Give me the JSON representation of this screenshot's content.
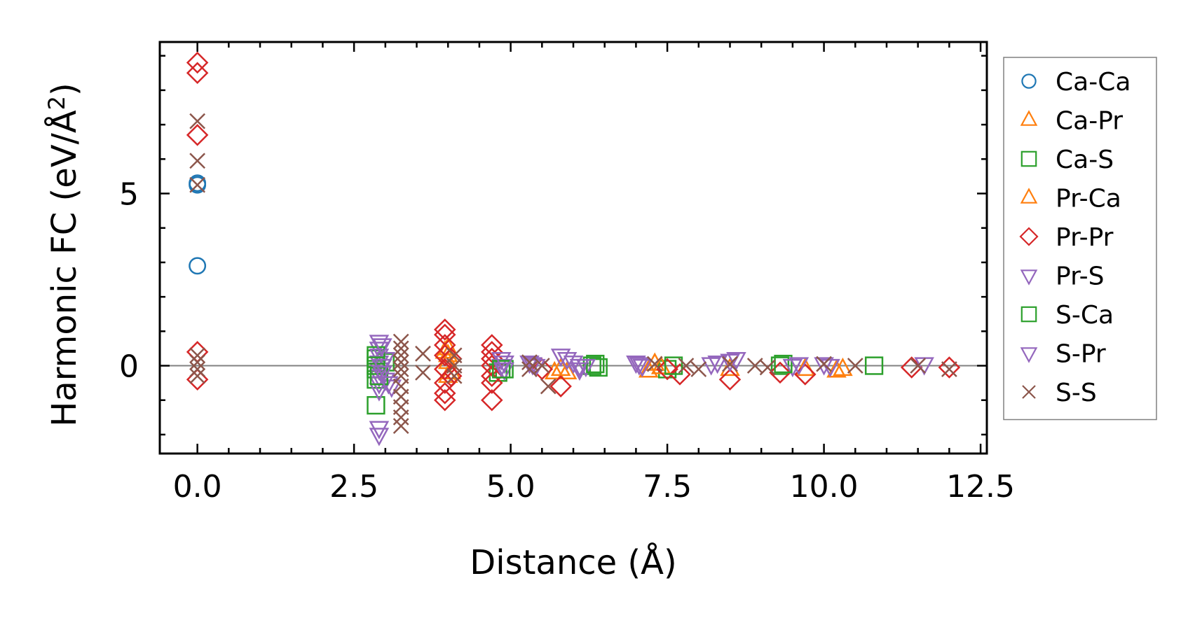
{
  "chart_data": {
    "type": "scatter",
    "title": "",
    "xlabel": "Distance (Å)",
    "ylabel": "Harmonic FC (eV/Å",
    "ylabel_superscript": "2",
    "ylabel_close": ")",
    "xlim": [
      -0.6,
      12.6
    ],
    "ylim": [
      -2.55,
      9.4
    ],
    "xticks": [
      0.0,
      2.5,
      5.0,
      7.5,
      10.0,
      12.5
    ],
    "xtick_labels": [
      "0.0",
      "2.5",
      "5.0",
      "7.5",
      "10.0",
      "12.5"
    ],
    "yticks": [
      0,
      5
    ],
    "ytick_labels": [
      "0",
      "5"
    ],
    "zero_line": true,
    "legend_position": "right",
    "series": [
      {
        "name": "Ca-Ca",
        "marker": "circle",
        "color": "#1f77b4",
        "points": [
          [
            0,
            5.3
          ],
          [
            0,
            2.9
          ],
          [
            0,
            5.25
          ]
        ]
      },
      {
        "name": "Ca-Pr",
        "marker": "triangle-up",
        "color": "#ff7f0e",
        "points": [
          [
            4.0,
            0.5
          ],
          [
            4.0,
            0.3
          ],
          [
            4.0,
            0.1
          ],
          [
            4.05,
            -0.2
          ],
          [
            5.8,
            -0.1
          ],
          [
            5.9,
            -0.2
          ],
          [
            7.2,
            -0.15
          ],
          [
            7.3,
            0.05
          ],
          [
            8.5,
            -0.1
          ],
          [
            9.7,
            -0.1
          ],
          [
            10.3,
            -0.1
          ]
        ]
      },
      {
        "name": "Ca-S",
        "marker": "square",
        "color": "#2ca02c",
        "points": [
          [
            2.85,
            0.2
          ],
          [
            2.85,
            -0.1
          ],
          [
            2.85,
            -0.4
          ],
          [
            2.85,
            -1.15
          ],
          [
            3.0,
            0.1
          ],
          [
            4.8,
            -0.2
          ],
          [
            4.9,
            -0.1
          ],
          [
            6.3,
            0.0
          ],
          [
            6.4,
            -0.05
          ],
          [
            7.5,
            -0.1
          ],
          [
            9.3,
            0.0
          ],
          [
            10.8,
            0.0
          ]
        ]
      },
      {
        "name": "Pr-Ca",
        "marker": "triangle-up",
        "color": "#ff7f0e",
        "points": [
          [
            3.95,
            0.4
          ],
          [
            4.0,
            -0.3
          ],
          [
            5.7,
            -0.2
          ],
          [
            7.4,
            -0.05
          ],
          [
            10.2,
            -0.15
          ]
        ]
      },
      {
        "name": "Pr-Pr",
        "marker": "diamond",
        "color": "#d62728",
        "points": [
          [
            0,
            8.8
          ],
          [
            0,
            8.5
          ],
          [
            0,
            6.7
          ],
          [
            0,
            0.4
          ],
          [
            0,
            -0.4
          ],
          [
            3.95,
            1.05
          ],
          [
            3.95,
            0.9
          ],
          [
            3.95,
            0.6
          ],
          [
            3.95,
            0.3
          ],
          [
            3.95,
            -0.1
          ],
          [
            3.95,
            -0.5
          ],
          [
            3.95,
            -0.8
          ],
          [
            3.95,
            -1.0
          ],
          [
            4.05,
            0.2
          ],
          [
            4.05,
            -0.3
          ],
          [
            4.7,
            0.6
          ],
          [
            4.7,
            0.4
          ],
          [
            4.7,
            0.2
          ],
          [
            4.7,
            0.0
          ],
          [
            4.7,
            -0.3
          ],
          [
            4.7,
            -0.5
          ],
          [
            4.7,
            -1.0
          ],
          [
            5.5,
            -0.1
          ],
          [
            5.8,
            -0.6
          ],
          [
            7.5,
            -0.1
          ],
          [
            7.7,
            -0.25
          ],
          [
            8.5,
            -0.4
          ],
          [
            9.3,
            -0.2
          ],
          [
            9.7,
            -0.25
          ],
          [
            11.4,
            -0.05
          ],
          [
            12.0,
            -0.05
          ]
        ]
      },
      {
        "name": "Pr-S",
        "marker": "triangle-down",
        "color": "#9467bd",
        "points": [
          [
            2.9,
            0.7
          ],
          [
            2.9,
            0.5
          ],
          [
            2.9,
            0.3
          ],
          [
            2.9,
            0.1
          ],
          [
            2.9,
            -0.1
          ],
          [
            2.9,
            -0.3
          ],
          [
            2.9,
            -0.5
          ],
          [
            2.9,
            -0.7
          ],
          [
            2.9,
            -1.8
          ],
          [
            2.9,
            -2.0
          ],
          [
            3.0,
            0.2
          ],
          [
            3.0,
            -0.4
          ],
          [
            3.1,
            -0.6
          ],
          [
            4.85,
            0.2
          ],
          [
            4.85,
            0.0
          ],
          [
            4.9,
            -0.1
          ],
          [
            5.3,
            0.1
          ],
          [
            5.4,
            0.0
          ],
          [
            5.8,
            0.3
          ],
          [
            6.0,
            0.1
          ],
          [
            6.1,
            -0.1
          ],
          [
            6.2,
            0.0
          ],
          [
            7.0,
            0.1
          ],
          [
            7.1,
            0.0
          ],
          [
            8.2,
            0.05
          ],
          [
            8.6,
            0.2
          ],
          [
            9.5,
            0.0
          ],
          [
            10.0,
            0.05
          ],
          [
            11.6,
            0.05
          ]
        ]
      },
      {
        "name": "S-Ca",
        "marker": "square",
        "color": "#2ca02c",
        "points": [
          [
            2.85,
            0.3
          ],
          [
            2.85,
            0.0
          ],
          [
            2.9,
            -0.3
          ],
          [
            4.85,
            -0.1
          ],
          [
            6.35,
            0.05
          ],
          [
            7.6,
            0.0
          ],
          [
            9.35,
            0.05
          ]
        ]
      },
      {
        "name": "S-Pr",
        "marker": "triangle-down",
        "color": "#9467bd",
        "points": [
          [
            2.95,
            0.6
          ],
          [
            2.95,
            0.0
          ],
          [
            2.95,
            -0.2
          ],
          [
            3.05,
            -0.5
          ],
          [
            4.9,
            0.1
          ],
          [
            5.35,
            0.05
          ],
          [
            5.9,
            0.2
          ],
          [
            6.1,
            0.0
          ],
          [
            7.05,
            0.05
          ],
          [
            8.3,
            0.1
          ],
          [
            8.5,
            0.15
          ],
          [
            9.6,
            0.05
          ],
          [
            10.1,
            0.0
          ]
        ]
      },
      {
        "name": "S-S",
        "marker": "x",
        "color": "#8c564b",
        "points": [
          [
            0,
            7.1
          ],
          [
            0,
            5.95
          ],
          [
            0,
            5.25
          ],
          [
            0,
            0.3
          ],
          [
            0,
            0.1
          ],
          [
            0,
            -0.1
          ],
          [
            0,
            -0.3
          ],
          [
            3.25,
            0.7
          ],
          [
            3.25,
            0.5
          ],
          [
            3.25,
            0.3
          ],
          [
            3.25,
            0.1
          ],
          [
            3.25,
            -0.1
          ],
          [
            3.25,
            -0.3
          ],
          [
            3.25,
            -0.6
          ],
          [
            3.25,
            -0.9
          ],
          [
            3.25,
            -1.2
          ],
          [
            3.25,
            -1.5
          ],
          [
            3.25,
            -1.75
          ],
          [
            3.6,
            0.35
          ],
          [
            3.6,
            -0.2
          ],
          [
            4.1,
            0.3
          ],
          [
            4.1,
            0.0
          ],
          [
            4.1,
            -0.3
          ],
          [
            5.3,
            0.1
          ],
          [
            5.3,
            -0.1
          ],
          [
            5.5,
            0.0
          ],
          [
            5.6,
            -0.6
          ],
          [
            7.3,
            0.05
          ],
          [
            7.8,
            0.0
          ],
          [
            8.0,
            -0.1
          ],
          [
            8.5,
            0.05
          ],
          [
            8.9,
            0.0
          ],
          [
            9.1,
            -0.05
          ],
          [
            10.0,
            0.05
          ],
          [
            10.5,
            0.0
          ],
          [
            11.5,
            0.0
          ],
          [
            12.0,
            -0.1
          ]
        ]
      }
    ]
  }
}
